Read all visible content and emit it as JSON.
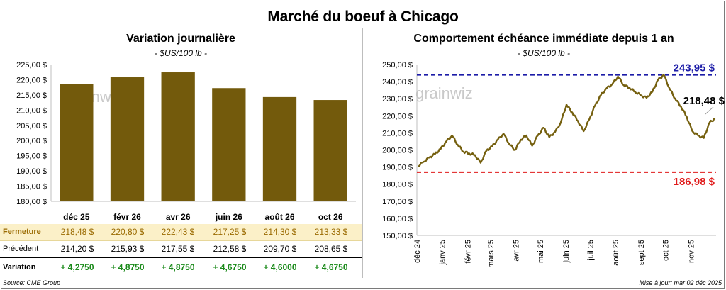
{
  "title": "Marché du boeuf à Chicago",
  "left": {
    "title": "Variation journalière",
    "subtitle": "- $US/100 lb -"
  },
  "right": {
    "title": "Comportement échéance immédiate depuis 1 an",
    "subtitle": "- $US/100 lb -"
  },
  "table": {
    "rows": [
      {
        "label": "Fermeture",
        "cells": [
          "218,48 $",
          "220,80 $",
          "222,43 $",
          "217,25 $",
          "214,30 $",
          "213,33 $"
        ]
      },
      {
        "label": "Précédent",
        "cells": [
          "214,20 $",
          "215,93 $",
          "217,55 $",
          "212,58 $",
          "209,70 $",
          "208,65 $"
        ]
      },
      {
        "label": "Variation",
        "cells": [
          "+ 4,2750",
          "+ 4,8750",
          "+ 4,8750",
          "+ 4,6750",
          "+ 4,6000",
          "+ 4,6750"
        ]
      }
    ]
  },
  "footer": {
    "source": "Source: CME Group",
    "updated": "Mise à jour: mar 02 déc 2025"
  },
  "watermark": "grainwiz",
  "colors": {
    "bar": "#735a0c",
    "line": "#75600f",
    "high": "#1c1ca8",
    "low": "#e01c1c",
    "close_row_bg": "#fbf0c8",
    "variation_text": "#1a8a1a"
  },
  "chart_data": [
    {
      "type": "bar",
      "categories": [
        "déc 25",
        "févr 26",
        "avr 26",
        "juin 26",
        "août 26",
        "oct 26"
      ],
      "values": [
        218.48,
        220.8,
        222.43,
        217.25,
        214.3,
        213.33
      ],
      "title": "Variation journalière",
      "subtitle": "- $US/100 lb -",
      "ylim": [
        180,
        225
      ],
      "yticks": [
        "180,00 $",
        "185,00 $",
        "190,00 $",
        "195,00 $",
        "200,00 $",
        "205,00 $",
        "210,00 $",
        "215,00 $",
        "220,00 $",
        "225,00 $"
      ],
      "grid": false
    },
    {
      "type": "line",
      "title": "Comportement échéance immédiate depuis 1 an",
      "subtitle": "- $US/100 lb -",
      "ylim": [
        150,
        250
      ],
      "yticks": [
        "150,00 $",
        "160,00 $",
        "170,00 $",
        "180,00 $",
        "190,00 $",
        "200,00 $",
        "210,00 $",
        "220,00 $",
        "230,00 $",
        "240,00 $",
        "250,00 $"
      ],
      "xticks": [
        "déc 24",
        "janv 25",
        "févr 25",
        "mars 25",
        "avr 25",
        "mai 25",
        "juin 25",
        "juil 25",
        "août 25",
        "sept 25",
        "oct 25",
        "nov 25"
      ],
      "x": [
        "2024-12-02",
        "2024-12-09",
        "2024-12-16",
        "2024-12-23",
        "2024-12-30",
        "2025-01-06",
        "2025-01-13",
        "2025-01-20",
        "2025-01-27",
        "2025-02-03",
        "2025-02-10",
        "2025-02-17",
        "2025-02-24",
        "2025-03-03",
        "2025-03-10",
        "2025-03-17",
        "2025-03-24",
        "2025-03-31",
        "2025-04-07",
        "2025-04-14",
        "2025-04-21",
        "2025-04-28",
        "2025-05-05",
        "2025-05-12",
        "2025-05-19",
        "2025-05-26",
        "2025-06-02",
        "2025-06-09",
        "2025-06-16",
        "2025-06-23",
        "2025-06-30",
        "2025-07-07",
        "2025-07-14",
        "2025-07-21",
        "2025-07-28",
        "2025-08-04",
        "2025-08-11",
        "2025-08-18",
        "2025-08-25",
        "2025-09-01",
        "2025-09-08",
        "2025-09-15",
        "2025-09-22",
        "2025-09-29",
        "2025-10-06",
        "2025-10-13",
        "2025-10-20",
        "2025-10-27",
        "2025-11-03",
        "2025-11-10",
        "2025-11-17",
        "2025-11-24",
        "2025-12-01"
      ],
      "values": [
        190.5,
        193.0,
        195.5,
        197.5,
        200.5,
        205.0,
        208.5,
        203.0,
        199.0,
        198.0,
        197.0,
        192.5,
        199.5,
        202.0,
        206.0,
        209.5,
        203.5,
        200.0,
        206.0,
        208.5,
        202.5,
        208.5,
        213.0,
        207.5,
        210.5,
        216.0,
        226.5,
        222.0,
        217.0,
        211.0,
        218.0,
        226.0,
        232.0,
        236.0,
        238.5,
        243.0,
        238.0,
        236.5,
        234.0,
        232.0,
        230.5,
        234.0,
        241.0,
        244.0,
        236.0,
        230.0,
        225.5,
        219.5,
        211.0,
        208.5,
        207.0,
        216.0,
        218.48
      ],
      "annotations": [
        {
          "label": "243,95 $",
          "value": 243.95,
          "kind": "high"
        },
        {
          "label": "186,98 $",
          "value": 186.98,
          "kind": "low"
        },
        {
          "label": "218,48 $",
          "value": 218.48,
          "kind": "last"
        }
      ],
      "grid": false
    }
  ]
}
